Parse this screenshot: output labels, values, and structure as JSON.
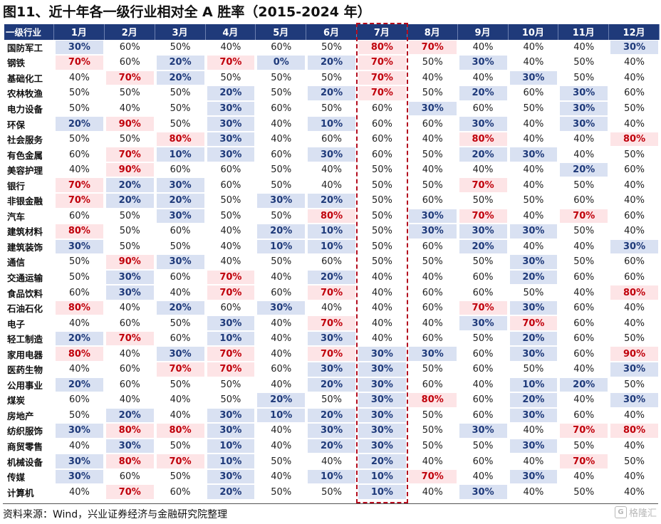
{
  "title": "图11、近十年各一级行业相对全 A 胜率（2015-2024 年）",
  "source": "资料来源：Wind，兴业证券经济与金融研究院整理",
  "watermark": {
    "text": "格隆汇",
    "logo": "G"
  },
  "colors": {
    "header_bg": "#1f3a7a",
    "high_bg": "#fde4e6",
    "high_text": "#c0000b",
    "low_bg": "#d9e1f2",
    "low_text": "#1f3a7a",
    "july_box": "#b40d1e"
  },
  "chart_data": {
    "type": "table",
    "corner_label": "一级行业",
    "highlight_column": "7月",
    "columns": [
      "1月",
      "2月",
      "3月",
      "4月",
      "5月",
      "6月",
      "7月",
      "8月",
      "9月",
      "10月",
      "11月",
      "12月"
    ],
    "rows": [
      {
        "name": "国防军工",
        "values": [
          "30%",
          "60%",
          "50%",
          "40%",
          "60%",
          "50%",
          "80%",
          "70%",
          "40%",
          "40%",
          "40%",
          "30%"
        ]
      },
      {
        "name": "钢铁",
        "values": [
          "70%",
          "60%",
          "20%",
          "70%",
          "0%",
          "20%",
          "70%",
          "50%",
          "30%",
          "40%",
          "50%",
          "40%"
        ]
      },
      {
        "name": "基础化工",
        "values": [
          "40%",
          "70%",
          "20%",
          "50%",
          "50%",
          "50%",
          "70%",
          "40%",
          "40%",
          "30%",
          "50%",
          "40%"
        ]
      },
      {
        "name": "农林牧渔",
        "values": [
          "50%",
          "50%",
          "50%",
          "20%",
          "50%",
          "20%",
          "70%",
          "50%",
          "20%",
          "60%",
          "30%",
          "60%"
        ]
      },
      {
        "name": "电力设备",
        "values": [
          "50%",
          "40%",
          "50%",
          "30%",
          "60%",
          "50%",
          "60%",
          "30%",
          "60%",
          "50%",
          "30%",
          "50%"
        ]
      },
      {
        "name": "环保",
        "values": [
          "20%",
          "90%",
          "50%",
          "30%",
          "40%",
          "10%",
          "60%",
          "60%",
          "30%",
          "40%",
          "30%",
          "40%"
        ]
      },
      {
        "name": "社会服务",
        "values": [
          "50%",
          "50%",
          "80%",
          "30%",
          "40%",
          "60%",
          "60%",
          "40%",
          "80%",
          "40%",
          "40%",
          "80%"
        ]
      },
      {
        "name": "有色金属",
        "values": [
          "60%",
          "70%",
          "10%",
          "30%",
          "60%",
          "30%",
          "60%",
          "50%",
          "20%",
          "30%",
          "40%",
          "50%"
        ]
      },
      {
        "name": "美容护理",
        "values": [
          "40%",
          "90%",
          "60%",
          "60%",
          "50%",
          "40%",
          "50%",
          "40%",
          "40%",
          "40%",
          "20%",
          "60%"
        ]
      },
      {
        "name": "银行",
        "values": [
          "70%",
          "20%",
          "30%",
          "60%",
          "50%",
          "40%",
          "50%",
          "50%",
          "70%",
          "40%",
          "50%",
          "40%"
        ]
      },
      {
        "name": "非银金融",
        "values": [
          "70%",
          "20%",
          "20%",
          "50%",
          "30%",
          "20%",
          "50%",
          "60%",
          "50%",
          "50%",
          "60%",
          "40%"
        ]
      },
      {
        "name": "汽车",
        "values": [
          "60%",
          "50%",
          "30%",
          "50%",
          "50%",
          "80%",
          "50%",
          "30%",
          "70%",
          "40%",
          "70%",
          "60%"
        ]
      },
      {
        "name": "建筑材料",
        "values": [
          "80%",
          "50%",
          "60%",
          "40%",
          "20%",
          "10%",
          "50%",
          "30%",
          "30%",
          "30%",
          "50%",
          "40%"
        ]
      },
      {
        "name": "建筑装饰",
        "values": [
          "30%",
          "50%",
          "50%",
          "40%",
          "10%",
          "10%",
          "50%",
          "60%",
          "20%",
          "40%",
          "40%",
          "30%"
        ]
      },
      {
        "name": "通信",
        "values": [
          "50%",
          "90%",
          "30%",
          "40%",
          "50%",
          "60%",
          "50%",
          "50%",
          "50%",
          "30%",
          "50%",
          "60%"
        ]
      },
      {
        "name": "交通运输",
        "values": [
          "50%",
          "30%",
          "60%",
          "70%",
          "40%",
          "20%",
          "40%",
          "40%",
          "60%",
          "20%",
          "60%",
          "60%"
        ]
      },
      {
        "name": "食品饮料",
        "values": [
          "60%",
          "30%",
          "40%",
          "70%",
          "60%",
          "70%",
          "40%",
          "60%",
          "60%",
          "50%",
          "40%",
          "80%"
        ]
      },
      {
        "name": "石油石化",
        "values": [
          "80%",
          "40%",
          "20%",
          "60%",
          "30%",
          "40%",
          "40%",
          "60%",
          "70%",
          "30%",
          "60%",
          "40%"
        ]
      },
      {
        "name": "电子",
        "values": [
          "40%",
          "60%",
          "50%",
          "30%",
          "40%",
          "70%",
          "40%",
          "40%",
          "30%",
          "70%",
          "60%",
          "40%"
        ]
      },
      {
        "name": "轻工制造",
        "values": [
          "20%",
          "70%",
          "60%",
          "10%",
          "40%",
          "30%",
          "40%",
          "60%",
          "50%",
          "20%",
          "60%",
          "50%"
        ]
      },
      {
        "name": "家用电器",
        "values": [
          "80%",
          "40%",
          "30%",
          "70%",
          "40%",
          "70%",
          "30%",
          "30%",
          "60%",
          "30%",
          "60%",
          "90%"
        ]
      },
      {
        "name": "医药生物",
        "values": [
          "40%",
          "60%",
          "70%",
          "70%",
          "60%",
          "30%",
          "30%",
          "50%",
          "60%",
          "50%",
          "40%",
          "30%"
        ]
      },
      {
        "name": "公用事业",
        "values": [
          "20%",
          "60%",
          "50%",
          "50%",
          "40%",
          "20%",
          "30%",
          "60%",
          "40%",
          "10%",
          "20%",
          "50%"
        ]
      },
      {
        "name": "煤炭",
        "values": [
          "60%",
          "40%",
          "40%",
          "50%",
          "20%",
          "50%",
          "30%",
          "80%",
          "60%",
          "20%",
          "40%",
          "30%"
        ]
      },
      {
        "name": "房地产",
        "values": [
          "50%",
          "20%",
          "40%",
          "30%",
          "10%",
          "20%",
          "30%",
          "50%",
          "60%",
          "30%",
          "60%",
          "40%"
        ]
      },
      {
        "name": "纺织服饰",
        "values": [
          "30%",
          "80%",
          "80%",
          "30%",
          "40%",
          "30%",
          "30%",
          "50%",
          "30%",
          "40%",
          "70%",
          "80%"
        ]
      },
      {
        "name": "商贸零售",
        "values": [
          "40%",
          "30%",
          "50%",
          "10%",
          "40%",
          "20%",
          "30%",
          "50%",
          "50%",
          "30%",
          "50%",
          "40%"
        ]
      },
      {
        "name": "机械设备",
        "values": [
          "30%",
          "80%",
          "70%",
          "10%",
          "50%",
          "40%",
          "20%",
          "40%",
          "60%",
          "40%",
          "70%",
          "50%"
        ]
      },
      {
        "name": "传媒",
        "values": [
          "30%",
          "60%",
          "50%",
          "30%",
          "40%",
          "10%",
          "10%",
          "70%",
          "40%",
          "30%",
          "40%",
          "40%"
        ]
      },
      {
        "name": "计算机",
        "values": [
          "40%",
          "70%",
          "60%",
          "20%",
          "50%",
          "50%",
          "10%",
          "40%",
          "30%",
          "40%",
          "50%",
          "40%"
        ]
      }
    ]
  }
}
